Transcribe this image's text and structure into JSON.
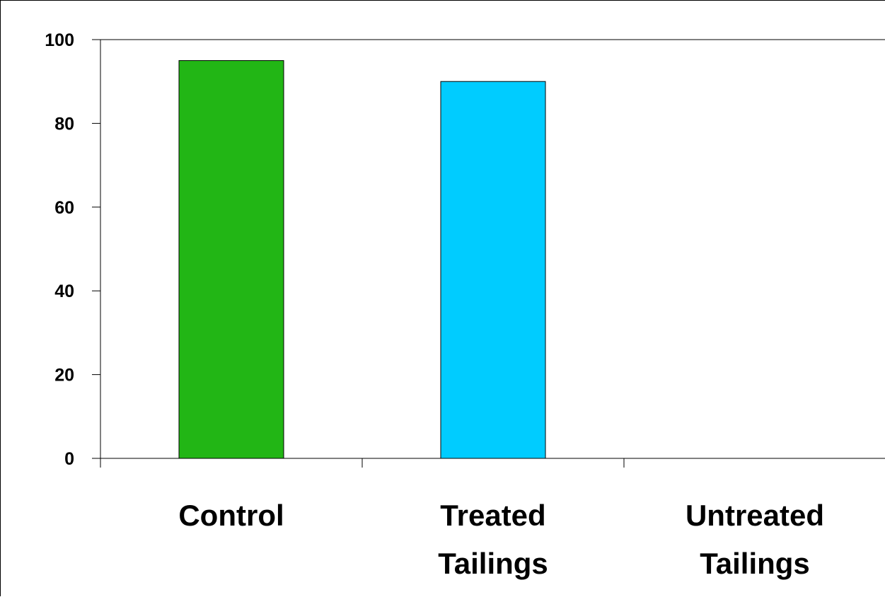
{
  "chart_data": {
    "type": "bar",
    "categories": [
      [
        "Control"
      ],
      [
        "Treated",
        "Tailings"
      ],
      [
        "Untreated",
        "Tailings"
      ]
    ],
    "values": [
      95,
      90,
      0
    ],
    "bar_colors": [
      "#22b615",
      "#00ccff",
      "#ffffff"
    ],
    "ylim": [
      0,
      100
    ],
    "yticks": [
      0,
      20,
      40,
      60,
      80,
      100
    ],
    "grid": false,
    "legend": "none",
    "title": "",
    "xlabel": "",
    "ylabel": ""
  }
}
